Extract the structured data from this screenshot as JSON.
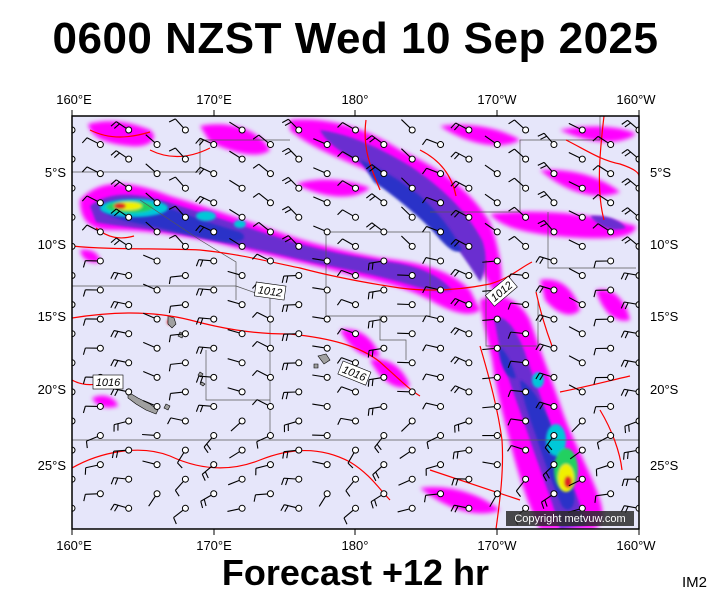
{
  "title": "0600 NZST Wed 10 Sep 2025",
  "footer": "Forecast +12 hr",
  "image_id": "IM2",
  "copyright": "Copyright metvuw.com",
  "map": {
    "lon_ticks": [
      "160°E",
      "170°E",
      "180°",
      "170°W",
      "160°W"
    ],
    "lat_ticks": [
      "5°S",
      "10°S",
      "15°S",
      "20°S",
      "25°S"
    ],
    "isobar_labels": [
      "1012",
      "1012",
      "1016",
      "1016"
    ],
    "colors": {
      "ocean": "#e6e6fa",
      "precip_light": "#ff00ff",
      "precip_medium": "#6a2fd0",
      "precip_heavy": "#2a32c8",
      "precip_cyan": "#00c8d8",
      "precip_green": "#20d060",
      "precip_yellow": "#f0f000",
      "precip_red": "#e02020",
      "isobar": "#ff0000",
      "border": "#555555"
    }
  }
}
